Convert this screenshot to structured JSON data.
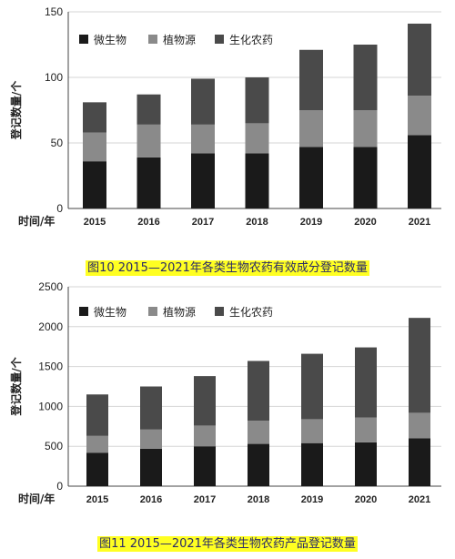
{
  "chart_data": [
    {
      "type": "bar",
      "stacked": true,
      "caption": "图10  2015—2021年各类生物农药有效成分登记数量",
      "xlabel": "时间/年",
      "ylabel": "登记数量/个",
      "ylim": [
        0,
        150
      ],
      "yticks": [
        0,
        50,
        100,
        150
      ],
      "grid": true,
      "legend_position": "top-left",
      "categories": [
        "2015",
        "2016",
        "2017",
        "2018",
        "2019",
        "2020",
        "2021"
      ],
      "series": [
        {
          "name": "微生物",
          "color": "#1a1a1a",
          "values": [
            36,
            39,
            42,
            42,
            47,
            47,
            56
          ]
        },
        {
          "name": "植物源",
          "color": "#8a8a8a",
          "values": [
            22,
            25,
            22,
            23,
            28,
            28,
            30
          ]
        },
        {
          "name": "生化农药",
          "color": "#4a4a4a",
          "values": [
            23,
            23,
            35,
            35,
            46,
            50,
            55
          ]
        }
      ]
    },
    {
      "type": "bar",
      "stacked": true,
      "caption": "图11  2015—2021年各类生物农药产品登记数量",
      "xlabel": "时间/年",
      "ylabel": "登记数量/个",
      "ylim": [
        0,
        2500
      ],
      "yticks": [
        0,
        500,
        1000,
        1500,
        2000,
        2500
      ],
      "grid": true,
      "legend_position": "top-left",
      "categories": [
        "2015",
        "2016",
        "2017",
        "2018",
        "2019",
        "2020",
        "2021"
      ],
      "series": [
        {
          "name": "微生物",
          "color": "#1a1a1a",
          "values": [
            420,
            470,
            500,
            530,
            540,
            550,
            600
          ]
        },
        {
          "name": "植物源",
          "color": "#8a8a8a",
          "values": [
            210,
            240,
            260,
            290,
            300,
            310,
            320
          ]
        },
        {
          "name": "生化农药",
          "color": "#4a4a4a",
          "values": [
            520,
            540,
            620,
            750,
            820,
            880,
            1190
          ]
        }
      ]
    }
  ]
}
